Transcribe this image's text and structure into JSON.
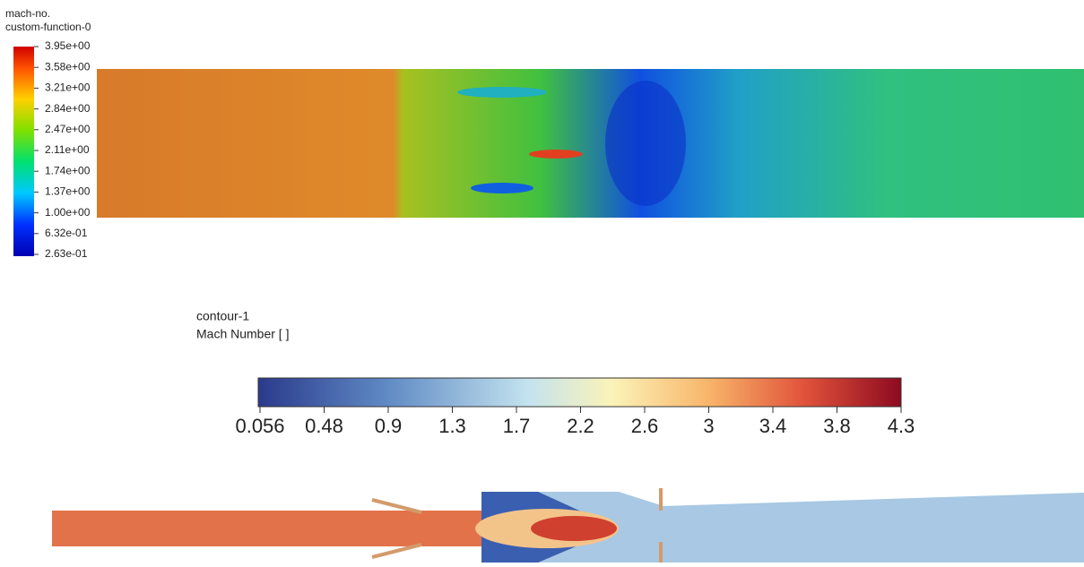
{
  "top_legend": {
    "title": [
      "mach-no.",
      "custom-function-0"
    ],
    "labels": [
      "3.95e+00",
      "3.58e+00",
      "3.21e+00",
      "2.84e+00",
      "2.47e+00",
      "2.11e+00",
      "1.74e+00",
      "1.37e+00",
      "1.00e+00",
      "6.32e-01",
      "2.63e-01"
    ]
  },
  "bottom_legend": {
    "title": "contour-1",
    "subtitle": "Mach Number [ ]",
    "labels": [
      "0.056",
      "0.48",
      "0.9",
      "1.3",
      "1.7",
      "2.2",
      "2.6",
      "3",
      "3.4",
      "3.8",
      "4.3"
    ]
  }
}
